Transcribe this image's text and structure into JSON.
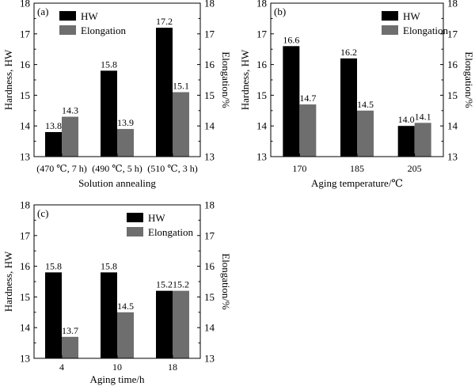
{
  "chart_data": [
    {
      "type": "bar",
      "panel_label": "(a)",
      "xlabel": "Solution annealing",
      "ylabel": "Hardness, HW",
      "y2label": "Elongation/%",
      "ylim": [
        13,
        18
      ],
      "yticks": [
        "13",
        "14",
        "15",
        "16",
        "17",
        "18"
      ],
      "y2ticks": [
        "13",
        "14",
        "15",
        "16",
        "17",
        "18"
      ],
      "categories": [
        "(470 ℃, 7 h)",
        "(490 ℃, 5 h)",
        "(510 ℃, 3 h)"
      ],
      "series": [
        {
          "name": "HW",
          "values": [
            13.8,
            15.8,
            17.2
          ],
          "labels": [
            "13.8",
            "15.8",
            "17.2"
          ]
        },
        {
          "name": "Elongation",
          "values": [
            14.3,
            13.9,
            15.1
          ],
          "labels": [
            "14.3",
            "13.9",
            "15.1"
          ]
        }
      ],
      "legend": "top-left",
      "grid": false
    },
    {
      "type": "bar",
      "panel_label": "(b)",
      "xlabel": "Aging temperature/℃",
      "ylabel": "Hardness, HW",
      "y2label": "Elongation/%",
      "ylim": [
        13,
        18
      ],
      "yticks": [
        "13",
        "14",
        "15",
        "16",
        "17",
        "18"
      ],
      "y2ticks": [
        "13",
        "14",
        "15",
        "16",
        "17",
        "18"
      ],
      "categories": [
        "170",
        "185",
        "205"
      ],
      "series": [
        {
          "name": "HW",
          "values": [
            16.6,
            16.2,
            14.0
          ],
          "labels": [
            "16.6",
            "16.2",
            "14.0"
          ]
        },
        {
          "name": "Elongation",
          "values": [
            14.7,
            14.5,
            14.1
          ],
          "labels": [
            "14.7",
            "14.5",
            "14.1"
          ]
        }
      ],
      "legend": "top-right",
      "grid": false
    },
    {
      "type": "bar",
      "panel_label": "(c)",
      "xlabel": "Aging time/h",
      "ylabel": "Hardness, HW",
      "y2label": "Elongation/%",
      "ylim": [
        13,
        18
      ],
      "yticks": [
        "13",
        "14",
        "15",
        "16",
        "17",
        "18"
      ],
      "y2ticks": [
        "13",
        "14",
        "15",
        "16",
        "17",
        "18"
      ],
      "categories": [
        "4",
        "10",
        "18"
      ],
      "series": [
        {
          "name": "HW",
          "values": [
            15.8,
            15.8,
            15.2
          ],
          "labels": [
            "15.8",
            "15.8",
            "15.2"
          ]
        },
        {
          "name": "Elongation",
          "values": [
            13.7,
            14.5,
            15.2
          ],
          "labels": [
            "13.7",
            "14.5",
            "15.2"
          ]
        }
      ],
      "legend": "top-right",
      "grid": false
    }
  ],
  "colors": {
    "hw": "#000000",
    "elongation": "#6e6e6e",
    "axis": "#000000"
  }
}
